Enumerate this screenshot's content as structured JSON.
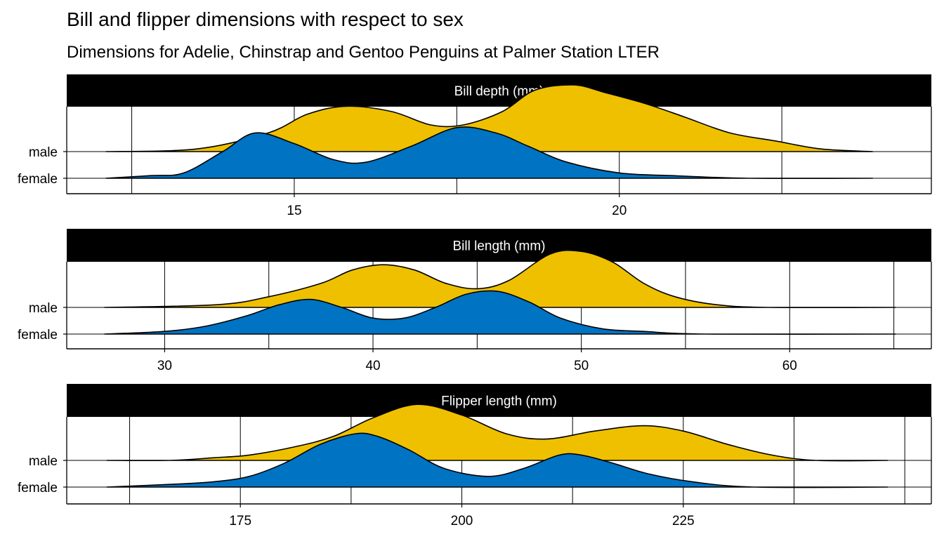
{
  "title": "Bill and flipper dimensions with respect to sex",
  "subtitle": "Dimensions for Adelie, Chinstrap and Gentoo Penguins at Palmer Station LTER",
  "colors": {
    "male": "#EFC000",
    "female": "#0073C2",
    "strip_bg": "#000000",
    "strip_text": "#FFFFFF",
    "grid": "#000000"
  },
  "chart_data": [
    {
      "type": "area",
      "chart_subtype": "ridgeline-density",
      "panel": "Bill depth (mm)",
      "y_categories": [
        "male",
        "female"
      ],
      "xlim": [
        11.5,
        24.8
      ],
      "x_ticks": [
        15,
        20
      ],
      "x_range_drawn": [
        12.1,
        23.9
      ],
      "series": [
        {
          "name": "male",
          "x": [
            12.1,
            13.5,
            14.6,
            15.2,
            15.8,
            16.5,
            17.1,
            17.6,
            18.2,
            18.7,
            19.3,
            19.8,
            20.4,
            21.0,
            21.7,
            22.4,
            23.1,
            23.9
          ],
          "density": [
            0.0,
            0.01,
            0.07,
            0.14,
            0.17,
            0.15,
            0.1,
            0.1,
            0.15,
            0.23,
            0.25,
            0.22,
            0.18,
            0.13,
            0.07,
            0.04,
            0.01,
            0.0
          ]
        },
        {
          "name": "female",
          "x": [
            12.1,
            12.8,
            13.3,
            13.9,
            14.4,
            15.0,
            15.6,
            16.1,
            16.8,
            17.5,
            18.1,
            18.6,
            19.2,
            20.0,
            20.8,
            22.0,
            23.9
          ],
          "density": [
            0.0,
            0.01,
            0.02,
            0.1,
            0.17,
            0.13,
            0.07,
            0.06,
            0.12,
            0.19,
            0.17,
            0.12,
            0.06,
            0.02,
            0.01,
            0.0,
            0.0
          ]
        }
      ]
    },
    {
      "type": "area",
      "chart_subtype": "ridgeline-density",
      "panel": "Bill length (mm)",
      "y_categories": [
        "male",
        "female"
      ],
      "xlim": [
        25.3,
        66.8
      ],
      "x_ticks": [
        30,
        40,
        50,
        60
      ],
      "x_range_drawn": [
        27.1,
        65.1
      ],
      "series": [
        {
          "name": "male",
          "x": [
            27.1,
            32.5,
            35.0,
            37.5,
            39.0,
            40.5,
            42.0,
            43.5,
            45.0,
            46.5,
            48.5,
            50.0,
            51.5,
            53.0,
            54.5,
            56.5,
            59.0,
            65.1
          ],
          "density": [
            0.0,
            0.01,
            0.04,
            0.09,
            0.14,
            0.16,
            0.14,
            0.09,
            0.07,
            0.1,
            0.2,
            0.21,
            0.17,
            0.09,
            0.04,
            0.01,
            0.0,
            0.0
          ]
        },
        {
          "name": "female",
          "x": [
            27.1,
            30.0,
            32.0,
            34.0,
            35.5,
            37.0,
            38.5,
            40.0,
            41.5,
            43.0,
            44.5,
            46.0,
            47.5,
            49.0,
            51.0,
            53.0,
            56.0,
            65.1
          ],
          "density": [
            0.0,
            0.01,
            0.03,
            0.07,
            0.11,
            0.13,
            0.1,
            0.06,
            0.06,
            0.1,
            0.15,
            0.16,
            0.12,
            0.06,
            0.02,
            0.01,
            0.0,
            0.0
          ]
        }
      ]
    },
    {
      "type": "area",
      "chart_subtype": "ridgeline-density",
      "panel": "Flipper length (mm)",
      "y_categories": [
        "male",
        "female"
      ],
      "xlim": [
        155.4,
        253.0
      ],
      "x_ticks": [
        175,
        200,
        225
      ],
      "x_range_drawn": [
        159.9,
        248.1
      ],
      "series": [
        {
          "name": "male",
          "x": [
            159.9,
            167.0,
            172.0,
            176.0,
            181.0,
            185.5,
            190.0,
            195.0,
            200.0,
            205.0,
            209.5,
            215.0,
            220.5,
            225.0,
            230.0,
            235.0,
            240.0,
            248.1
          ],
          "density": [
            0.0,
            0.0,
            0.01,
            0.02,
            0.05,
            0.09,
            0.16,
            0.21,
            0.17,
            0.1,
            0.08,
            0.11,
            0.13,
            0.11,
            0.06,
            0.02,
            0.0,
            0.0
          ]
        },
        {
          "name": "female",
          "x": [
            159.9,
            167.0,
            172.0,
            176.0,
            180.0,
            184.0,
            188.0,
            190.5,
            194.0,
            198.0,
            203.0,
            207.0,
            211.0,
            213.5,
            217.0,
            221.0,
            226.0,
            233.0,
            248.1
          ],
          "density": [
            0.0,
            0.01,
            0.02,
            0.04,
            0.09,
            0.16,
            0.2,
            0.19,
            0.14,
            0.07,
            0.04,
            0.07,
            0.12,
            0.12,
            0.09,
            0.05,
            0.02,
            0.0,
            0.0
          ]
        }
      ]
    }
  ]
}
